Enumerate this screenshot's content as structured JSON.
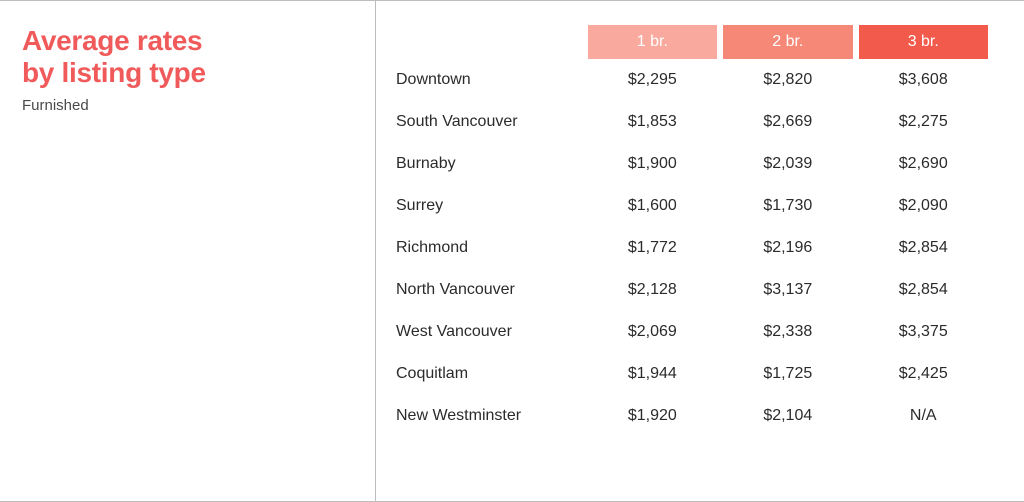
{
  "title_line1": "Average rates",
  "title_line2": "by listing type",
  "subtitle": "Furnished",
  "title_color": "#f05a5a",
  "text_color": "#2b2b2b",
  "border_color": "#bdbdbd",
  "background_color": "#ffffff",
  "header_text_color": "#ffffff",
  "table": {
    "type": "table",
    "columns": [
      {
        "label": "1 br.",
        "bg": "#f9a99d"
      },
      {
        "label": "2 br.",
        "bg": "#f68877"
      },
      {
        "label": "3 br.",
        "bg": "#f25a4c"
      }
    ],
    "rows": [
      {
        "label": "Downtown",
        "cells": [
          "$2,295",
          "$2,820",
          "$3,608"
        ]
      },
      {
        "label": "South Vancouver",
        "cells": [
          "$1,853",
          "$2,669",
          "$2,275"
        ]
      },
      {
        "label": "Burnaby",
        "cells": [
          "$1,900",
          "$2,039",
          "$2,690"
        ]
      },
      {
        "label": "Surrey",
        "cells": [
          "$1,600",
          "$1,730",
          "$2,090"
        ]
      },
      {
        "label": "Richmond",
        "cells": [
          "$1,772",
          "$2,196",
          "$2,854"
        ]
      },
      {
        "label": "North Vancouver",
        "cells": [
          "$2,128",
          "$3,137",
          "$2,854"
        ]
      },
      {
        "label": "West Vancouver",
        "cells": [
          "$2,069",
          "$2,338",
          "$3,375"
        ]
      },
      {
        "label": "Coquitlam",
        "cells": [
          "$1,944",
          "$1,725",
          "$2,425"
        ]
      },
      {
        "label": "New Westminster",
        "cells": [
          "$1,920",
          "$2,104",
          "N/A"
        ]
      }
    ]
  }
}
